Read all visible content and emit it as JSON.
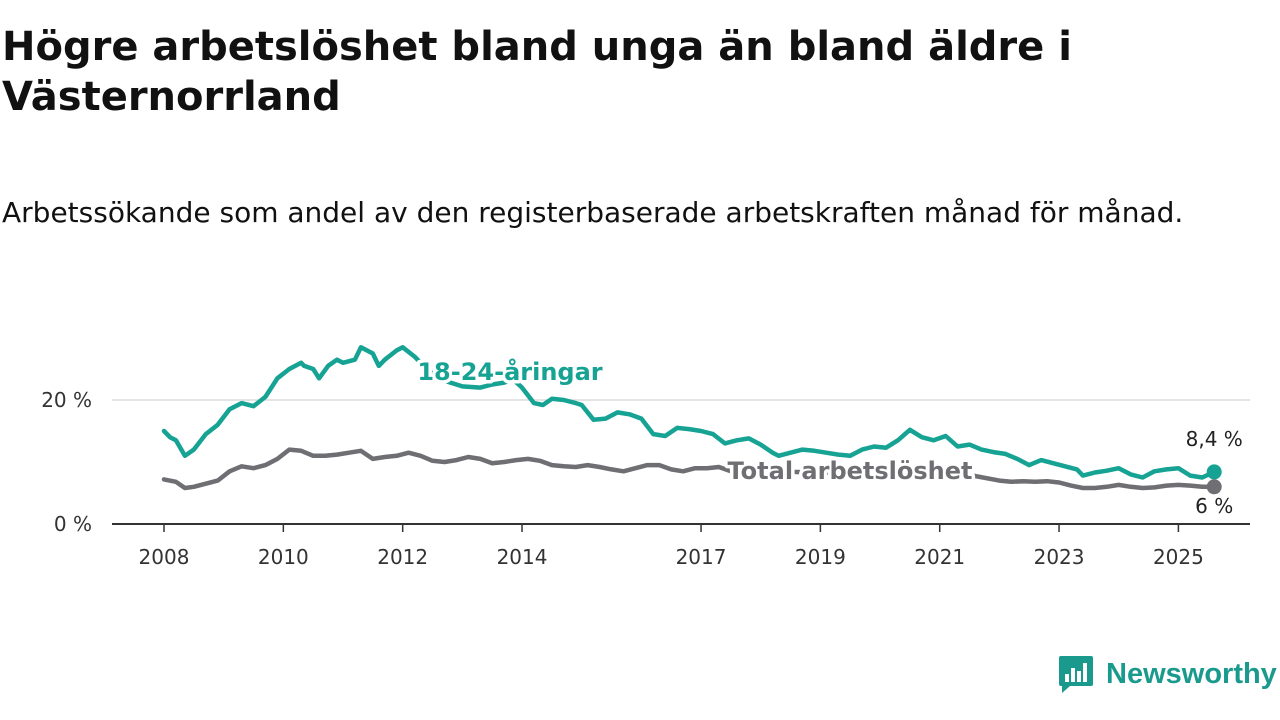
{
  "title": "Högre arbetslöshet bland unga än bland äldre i Västernorrland",
  "subtitle": "Arbetssökande som andel av den registerbaserade arbetskraften månad för månad.",
  "logo": {
    "text": "Newsworthy",
    "icon": "newsworthy-logo-icon",
    "color": "#1a9a8d"
  },
  "chart_data": {
    "type": "line",
    "title": "Högre arbetslöshet bland unga än bland äldre i Västernorrland",
    "xlabel": "",
    "ylabel": "",
    "xlim": [
      2008,
      2026.2
    ],
    "ylim": [
      0,
      30
    ],
    "y_ticks": [
      0,
      20
    ],
    "y_tick_labels": [
      "0 %",
      "20 %"
    ],
    "x_ticks": [
      2008,
      2010,
      2012,
      2014,
      2017,
      2019,
      2021,
      2023,
      2025
    ],
    "x_tick_labels": [
      "2008",
      "2010",
      "2012",
      "2014",
      "2017",
      "2019",
      "2021",
      "2023",
      "2025"
    ],
    "grid": true,
    "series": [
      {
        "name": "18-24-åringar",
        "color": "#17a394",
        "end_label": "8,4 %",
        "x": [
          2008.0,
          2008.1,
          2008.2,
          2008.35,
          2008.5,
          2008.7,
          2008.9,
          2009.1,
          2009.3,
          2009.5,
          2009.7,
          2009.9,
          2010.1,
          2010.3,
          2010.35,
          2010.5,
          2010.6,
          2010.75,
          2010.9,
          2011.0,
          2011.2,
          2011.3,
          2011.5,
          2011.6,
          2011.7,
          2011.9,
          2012.0,
          2012.2,
          2012.4,
          2012.6,
          2012.8,
          2013.0,
          2013.3,
          2013.5,
          2013.7,
          2013.85,
          2014.0,
          2014.2,
          2014.35,
          2014.5,
          2014.7,
          2014.9,
          2015.0,
          2015.2,
          2015.4,
          2015.6,
          2015.8,
          2016.0,
          2016.2,
          2016.4,
          2016.6,
          2016.8,
          2017.0,
          2017.2,
          2017.4,
          2017.6,
          2017.8,
          2018.0,
          2018.2,
          2018.3,
          2018.5,
          2018.7,
          2018.9,
          2019.1,
          2019.3,
          2019.5,
          2019.7,
          2019.9,
          2020.1,
          2020.3,
          2020.5,
          2020.7,
          2020.9,
          2021.1,
          2021.3,
          2021.5,
          2021.7,
          2021.9,
          2022.1,
          2022.3,
          2022.5,
          2022.7,
          2022.9,
          2023.1,
          2023.3,
          2023.4,
          2023.6,
          2023.8,
          2024.0,
          2024.2,
          2024.4,
          2024.6,
          2024.8,
          2025.0,
          2025.2,
          2025.4,
          2025.6
        ],
        "y": [
          15.0,
          14.0,
          13.5,
          11.0,
          12.0,
          14.5,
          16.0,
          18.5,
          19.5,
          19.0,
          20.5,
          23.5,
          25.0,
          26.0,
          25.5,
          25.0,
          23.5,
          25.5,
          26.5,
          26.0,
          26.5,
          28.5,
          27.5,
          25.5,
          26.5,
          28.0,
          28.5,
          27.0,
          25.0,
          23.5,
          22.8,
          22.2,
          22.0,
          22.5,
          22.8,
          23.3,
          22.0,
          19.5,
          19.2,
          20.2,
          20.0,
          19.5,
          19.2,
          16.8,
          17.0,
          18.0,
          17.7,
          17.0,
          14.5,
          14.2,
          15.5,
          15.3,
          15.0,
          14.5,
          13.0,
          13.5,
          13.8,
          12.8,
          11.5,
          11.0,
          11.5,
          12.0,
          11.8,
          11.5,
          11.2,
          11.0,
          12.0,
          12.5,
          12.3,
          13.5,
          15.2,
          14.0,
          13.5,
          14.2,
          12.5,
          12.8,
          12.0,
          11.6,
          11.3,
          10.5,
          9.5,
          10.3,
          9.8,
          9.3,
          8.8,
          7.8,
          8.3,
          8.6,
          9.0,
          8.0,
          7.5,
          8.5,
          8.8,
          9.0,
          7.8,
          7.5,
          8.4
        ]
      },
      {
        "name": "Total arbetslöshet",
        "color": "#6f6e73",
        "end_label": "6 %",
        "x": [
          2008.0,
          2008.2,
          2008.35,
          2008.5,
          2008.7,
          2008.9,
          2009.1,
          2009.3,
          2009.5,
          2009.7,
          2009.9,
          2010.1,
          2010.3,
          2010.5,
          2010.7,
          2010.9,
          2011.1,
          2011.3,
          2011.5,
          2011.7,
          2011.9,
          2012.1,
          2012.3,
          2012.5,
          2012.7,
          2012.9,
          2013.1,
          2013.3,
          2013.5,
          2013.7,
          2013.9,
          2014.1,
          2014.3,
          2014.5,
          2014.7,
          2014.9,
          2015.1,
          2015.3,
          2015.5,
          2015.7,
          2015.9,
          2016.1,
          2016.3,
          2016.5,
          2016.7,
          2016.9,
          2017.1,
          2017.3,
          2017.5,
          2017.7,
          2018.0,
          2018.5,
          2019.0,
          2019.5,
          2020.0,
          2020.5,
          2021.0,
          2021.5,
          2022.0,
          2022.2,
          2022.4,
          2022.6,
          2022.8,
          2023.0,
          2023.2,
          2023.4,
          2023.6,
          2023.8,
          2024.0,
          2024.2,
          2024.4,
          2024.6,
          2024.8,
          2025.0,
          2025.2,
          2025.4,
          2025.6
        ],
        "y": [
          7.2,
          6.8,
          5.8,
          6.0,
          6.5,
          7.0,
          8.5,
          9.3,
          9.0,
          9.5,
          10.5,
          12.0,
          11.8,
          11.0,
          11.0,
          11.2,
          11.5,
          11.8,
          10.5,
          10.8,
          11.0,
          11.5,
          11.0,
          10.2,
          10.0,
          10.3,
          10.8,
          10.5,
          9.8,
          10.0,
          10.3,
          10.5,
          10.2,
          9.5,
          9.3,
          9.2,
          9.5,
          9.2,
          8.8,
          8.5,
          9.0,
          9.5,
          9.5,
          8.8,
          8.5,
          9.0,
          9.0,
          9.2,
          8.5,
          8.8,
          8.6,
          8.4,
          8.3,
          8.2,
          8.1,
          8.0,
          7.9,
          7.9,
          7.0,
          6.8,
          6.9,
          6.8,
          6.9,
          6.7,
          6.2,
          5.8,
          5.8,
          6.0,
          6.3,
          6.0,
          5.8,
          5.9,
          6.2,
          6.3,
          6.2,
          6.0,
          6.0
        ]
      }
    ]
  }
}
